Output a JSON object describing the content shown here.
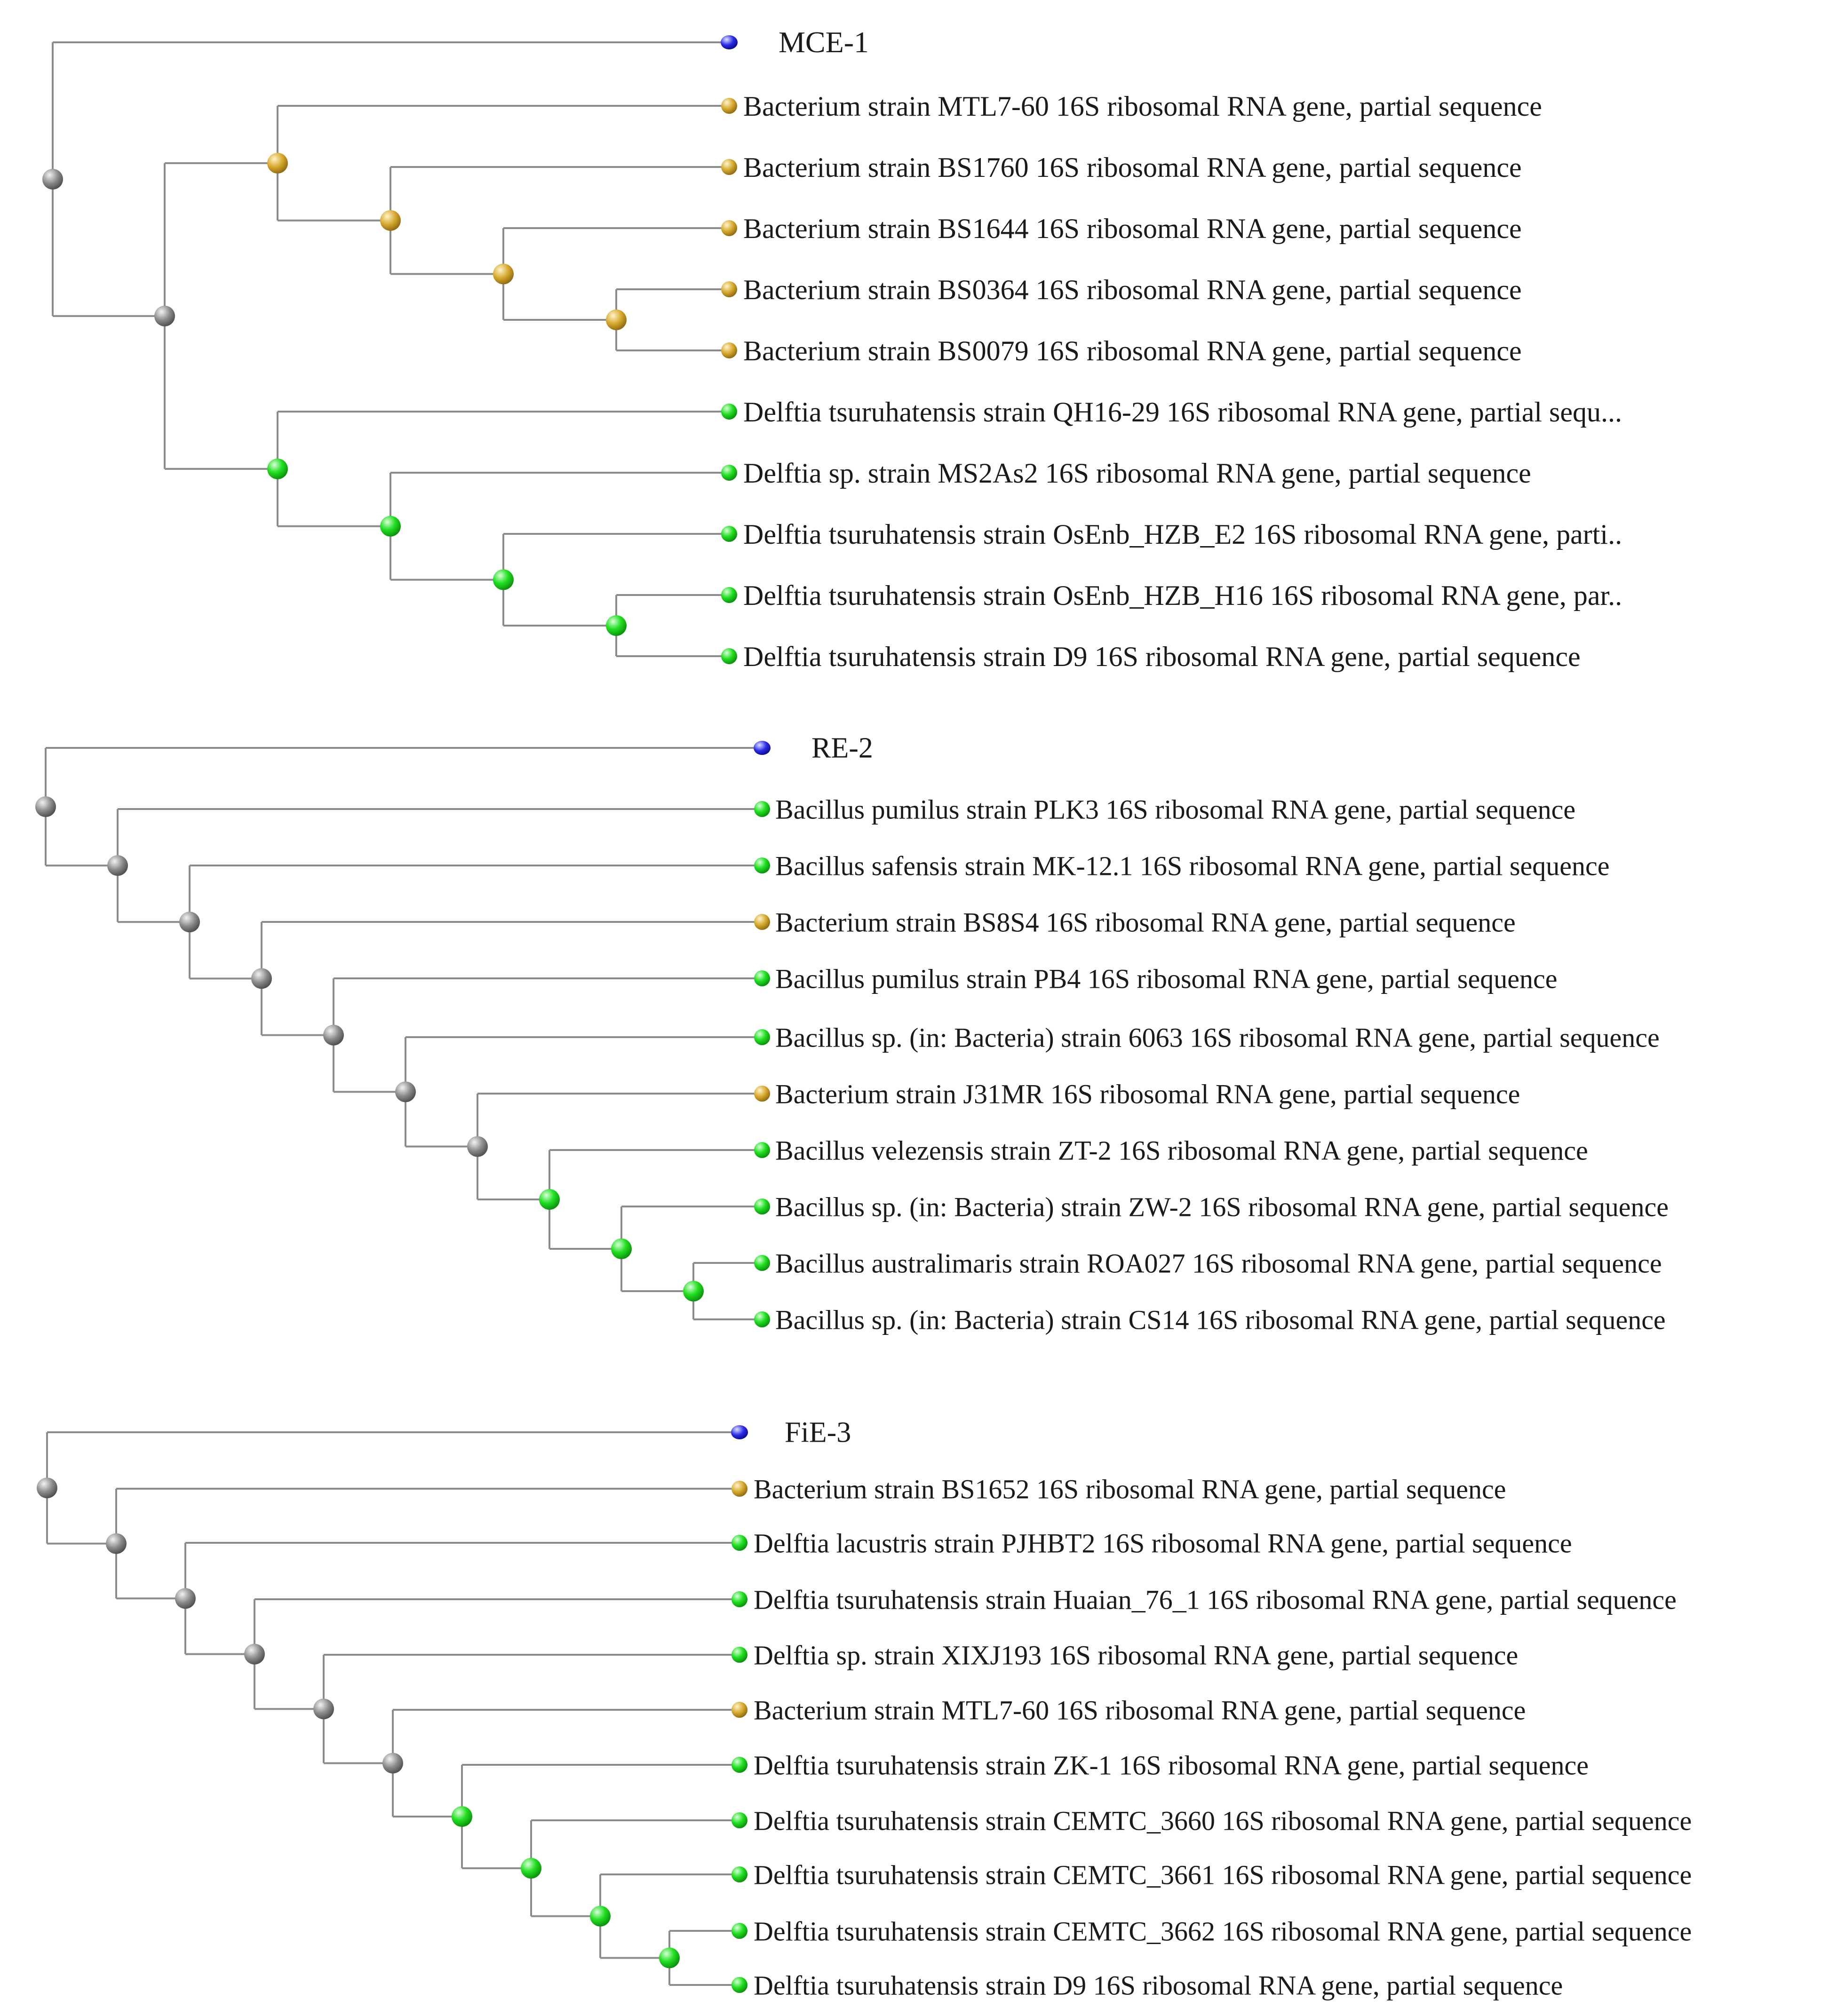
{
  "colors": {
    "branch": "#8c8c8c",
    "gray": "#8a8a8a",
    "gold": "#d4a62a",
    "green": "#22e022",
    "blue": "#2a2ae8"
  },
  "trees": [
    {
      "id": "mce-1",
      "query": {
        "label": "MCE-1",
        "color": "blue"
      },
      "leaves": [
        {
          "label": "Bacterium strain MTL7-60 16S ribosomal RNA gene, partial sequence",
          "color": "gold"
        },
        {
          "label": "Bacterium strain BS1760 16S ribosomal RNA gene, partial sequence",
          "color": "gold"
        },
        {
          "label": "Bacterium strain BS1644 16S ribosomal RNA gene, partial sequence",
          "color": "gold"
        },
        {
          "label": "Bacterium strain BS0364 16S ribosomal RNA gene, partial sequence",
          "color": "gold"
        },
        {
          "label": "Bacterium strain BS0079 16S ribosomal RNA gene, partial sequence",
          "color": "gold"
        },
        {
          "label": "Delftia tsuruhatensis strain QH16-29 16S ribosomal RNA gene, partial sequ...",
          "color": "green"
        },
        {
          "label": "Delftia sp. strain MS2As2 16S ribosomal RNA gene, partial sequence",
          "color": "green"
        },
        {
          "label": "Delftia tsuruhatensis strain OsEnb_HZB_E2 16S ribosomal RNA gene, parti..",
          "color": "green"
        },
        {
          "label": "Delftia tsuruhatensis strain OsEnb_HZB_H16 16S ribosomal RNA gene, par..",
          "color": "green"
        },
        {
          "label": "Delftia tsuruhatensis strain D9 16S ribosomal RNA gene, partial sequence",
          "color": "green"
        }
      ],
      "nodes": [
        {
          "children": [
            "Q",
            1
          ],
          "color": "gray"
        },
        {
          "children": [
            2,
            6
          ],
          "color": "gray"
        },
        {
          "children": [
            "L0",
            3
          ],
          "color": "gold"
        },
        {
          "children": [
            "L1",
            4
          ],
          "color": "gold"
        },
        {
          "children": [
            "L2",
            5
          ],
          "color": "gold"
        },
        {
          "children": [
            "L3",
            "L4"
          ],
          "color": "gold"
        },
        {
          "children": [
            "L5",
            7
          ],
          "color": "green"
        },
        {
          "children": [
            "L6",
            8
          ],
          "color": "green"
        },
        {
          "children": [
            "L7",
            9
          ],
          "color": "green"
        },
        {
          "children": [
            "L8",
            "L9"
          ],
          "color": "green"
        }
      ]
    },
    {
      "id": "re-2",
      "query": {
        "label": "RE-2",
        "color": "blue"
      },
      "leaves": [
        {
          "label": "Bacillus pumilus strain PLK3 16S ribosomal RNA gene, partial sequence",
          "color": "green"
        },
        {
          "label": "Bacillus safensis strain MK-12.1 16S ribosomal RNA gene, partial sequence",
          "color": "green"
        },
        {
          "label": "Bacterium strain BS8S4 16S ribosomal RNA gene, partial sequence",
          "color": "gold"
        },
        {
          "label": "Bacillus pumilus strain PB4 16S ribosomal RNA gene, partial sequence",
          "color": "green"
        },
        {
          "label": "Bacillus sp. (in: Bacteria) strain 6063 16S ribosomal RNA gene, partial sequence",
          "color": "green"
        },
        {
          "label": "Bacterium strain J31MR 16S ribosomal RNA gene, partial sequence",
          "color": "gold"
        },
        {
          "label": "Bacillus velezensis strain ZT-2 16S ribosomal RNA gene, partial sequence",
          "color": "green"
        },
        {
          "label": "Bacillus sp. (in: Bacteria) strain ZW-2 16S ribosomal RNA gene, partial sequence",
          "color": "green"
        },
        {
          "label": "Bacillus australimaris strain ROA027 16S ribosomal RNA gene, partial sequence",
          "color": "green"
        },
        {
          "label": "Bacillus sp. (in: Bacteria) strain CS14 16S ribosomal RNA gene, partial sequence",
          "color": "green"
        }
      ],
      "nodes": [
        {
          "children": [
            "Q",
            1
          ],
          "color": "gray"
        },
        {
          "children": [
            "L0",
            2
          ],
          "color": "gray"
        },
        {
          "children": [
            "L1",
            3
          ],
          "color": "gray"
        },
        {
          "children": [
            "L2",
            4
          ],
          "color": "gray"
        },
        {
          "children": [
            "L3",
            5
          ],
          "color": "gray"
        },
        {
          "children": [
            "L4",
            6
          ],
          "color": "gray"
        },
        {
          "children": [
            "L5",
            7
          ],
          "color": "gray"
        },
        {
          "children": [
            "L6",
            8
          ],
          "color": "green"
        },
        {
          "children": [
            "L7",
            9
          ],
          "color": "green"
        },
        {
          "children": [
            "L8",
            "L9"
          ],
          "color": "green"
        }
      ]
    },
    {
      "id": "fie-3",
      "query": {
        "label": "FiE-3",
        "color": "blue"
      },
      "leaves": [
        {
          "label": "Bacterium strain BS1652 16S ribosomal RNA gene, partial sequence",
          "color": "gold"
        },
        {
          "label": "Delftia lacustris strain PJHBT2 16S ribosomal RNA gene, partial sequence",
          "color": "green"
        },
        {
          "label": "Delftia tsuruhatensis strain Huaian_76_1 16S ribosomal RNA gene, partial sequence",
          "color": "green"
        },
        {
          "label": "Delftia sp. strain XIXJ193 16S ribosomal RNA gene, partial sequence",
          "color": "green"
        },
        {
          "label": "Bacterium strain MTL7-60 16S ribosomal RNA gene, partial sequence",
          "color": "gold"
        },
        {
          "label": "Delftia tsuruhatensis strain ZK-1 16S ribosomal RNA gene, partial sequence",
          "color": "green"
        },
        {
          "label": "Delftia tsuruhatensis strain CEMTC_3660 16S ribosomal RNA gene, partial sequence",
          "color": "green"
        },
        {
          "label": "Delftia tsuruhatensis strain CEMTC_3661 16S ribosomal RNA gene, partial sequence",
          "color": "green"
        },
        {
          "label": "Delftia tsuruhatensis strain CEMTC_3662 16S ribosomal RNA gene, partial sequence",
          "color": "green"
        },
        {
          "label": "Delftia tsuruhatensis strain D9 16S ribosomal RNA gene, partial sequence",
          "color": "green"
        }
      ],
      "nodes": [
        {
          "children": [
            "Q",
            1
          ],
          "color": "gray"
        },
        {
          "children": [
            "L0",
            2
          ],
          "color": "gray"
        },
        {
          "children": [
            "L1",
            3
          ],
          "color": "gray"
        },
        {
          "children": [
            "L2",
            4
          ],
          "color": "gray"
        },
        {
          "children": [
            "L3",
            5
          ],
          "color": "gray"
        },
        {
          "children": [
            "L4",
            6
          ],
          "color": "gray"
        },
        {
          "children": [
            "L5",
            7
          ],
          "color": "green"
        },
        {
          "children": [
            "L6",
            8
          ],
          "color": "green"
        },
        {
          "children": [
            "L7",
            9
          ],
          "color": "green"
        },
        {
          "children": [
            "L8",
            "L9"
          ],
          "color": "green"
        }
      ]
    }
  ]
}
